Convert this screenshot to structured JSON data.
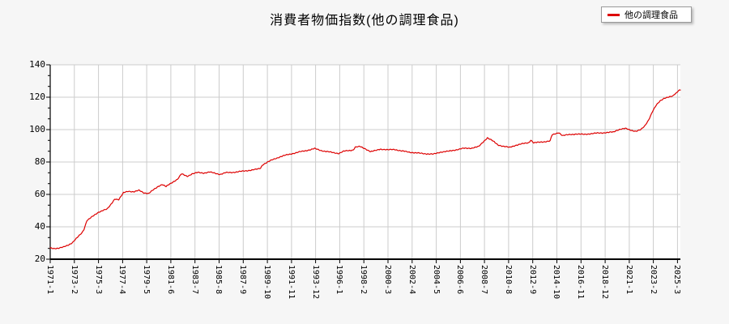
{
  "title": "消費者物価指数(他の調理食品)",
  "legend": {
    "label": "他の調理食品"
  },
  "colors": {
    "line": "#dd0000",
    "grid": "#cccccc",
    "axis": "#000000",
    "plot_bg": "#ffffff",
    "page_bg": "#f6f6f6",
    "text": "#000000",
    "legend_border": "#9a9a9a"
  },
  "chart_data": {
    "type": "line",
    "title": "消費者物価指数(他の調理食品)",
    "grid": true,
    "legend_position": "top-right",
    "x_start": "1971-1",
    "x_end": "2025-6",
    "x_tick_interval_months": 25,
    "x_tick_labels": [
      "1971-1",
      "1973-2",
      "1975-3",
      "1977-4",
      "1979-5",
      "1981-6",
      "1983-7",
      "1985-8",
      "1987-9",
      "1989-10",
      "1991-11",
      "1993-12",
      "1996-1",
      "1998-2",
      "2000-3",
      "2002-4",
      "2004-5",
      "2006-6",
      "2008-7",
      "2010-8",
      "2012-9",
      "2014-10",
      "2016-11",
      "2018-12",
      "2021-1",
      "2023-2",
      "2025-3"
    ],
    "ylim": [
      20,
      140
    ],
    "y_ticks": [
      20,
      40,
      60,
      80,
      100,
      120,
      140
    ],
    "y_minor_divisions": 3,
    "wiggle_amplitude": 0.22,
    "series": [
      {
        "name": "他の調理食品",
        "color": "#dd0000",
        "keypoints": [
          [
            "1971-1",
            26.8
          ],
          [
            "1971-5",
            26.6
          ],
          [
            "1971-10",
            26.9
          ],
          [
            "1972-3",
            27.5
          ],
          [
            "1972-8",
            28.8
          ],
          [
            "1972-12",
            30.3
          ],
          [
            "1973-3",
            32.2
          ],
          [
            "1973-7",
            34.5
          ],
          [
            "1973-10",
            36.3
          ],
          [
            "1973-12",
            38.5
          ],
          [
            "1974-3",
            44.0
          ],
          [
            "1974-8",
            46.0
          ],
          [
            "1974-12",
            47.6
          ],
          [
            "1975-3",
            49.0
          ],
          [
            "1975-8",
            50.3
          ],
          [
            "1975-12",
            50.9
          ],
          [
            "1976-3",
            53.0
          ],
          [
            "1976-8",
            57.3
          ],
          [
            "1976-12",
            56.8
          ],
          [
            "1977-5",
            61.0
          ],
          [
            "1977-10",
            62.0
          ],
          [
            "1978-4",
            61.6
          ],
          [
            "1978-9",
            62.5
          ],
          [
            "1979-2",
            61.0
          ],
          [
            "1979-7",
            60.6
          ],
          [
            "1979-12",
            62.8
          ],
          [
            "1980-5",
            65.0
          ],
          [
            "1980-9",
            66.2
          ],
          [
            "1981-1",
            64.8
          ],
          [
            "1981-7",
            67.2
          ],
          [
            "1982-1",
            69.5
          ],
          [
            "1982-5",
            72.6
          ],
          [
            "1982-11",
            71.2
          ],
          [
            "1983-4",
            72.7
          ],
          [
            "1983-10",
            73.5
          ],
          [
            "1984-4",
            73.2
          ],
          [
            "1984-10",
            73.8
          ],
          [
            "1985-4",
            73.0
          ],
          [
            "1985-9",
            72.4
          ],
          [
            "1986-3",
            73.4
          ],
          [
            "1986-10",
            73.6
          ],
          [
            "1987-4",
            74.0
          ],
          [
            "1987-10",
            74.4
          ],
          [
            "1988-5",
            75.0
          ],
          [
            "1988-12",
            75.6
          ],
          [
            "1989-3",
            76.2
          ],
          [
            "1989-5",
            78.3
          ],
          [
            "1989-11",
            80.2
          ],
          [
            "1990-5",
            81.8
          ],
          [
            "1990-11",
            83.2
          ],
          [
            "1991-5",
            84.2
          ],
          [
            "1991-12",
            85.2
          ],
          [
            "1992-7",
            86.2
          ],
          [
            "1993-2",
            87.0
          ],
          [
            "1993-11",
            88.3
          ],
          [
            "1994-5",
            87.2
          ],
          [
            "1994-11",
            86.5
          ],
          [
            "1995-6",
            85.8
          ],
          [
            "1995-12",
            85.3
          ],
          [
            "1996-5",
            86.6
          ],
          [
            "1996-11",
            87.1
          ],
          [
            "1997-3",
            87.5
          ],
          [
            "1997-5",
            89.2
          ],
          [
            "1997-10",
            89.5
          ],
          [
            "1998-4",
            88.0
          ],
          [
            "1998-9",
            86.4
          ],
          [
            "1999-2",
            87.0
          ],
          [
            "1999-7",
            88.0
          ],
          [
            "2000-3",
            87.5
          ],
          [
            "2000-10",
            87.8
          ],
          [
            "2001-5",
            86.8
          ],
          [
            "2001-12",
            86.2
          ],
          [
            "2002-8",
            85.6
          ],
          [
            "2003-4",
            85.2
          ],
          [
            "2004-2",
            84.8
          ],
          [
            "2004-10",
            86.2
          ],
          [
            "2005-6",
            86.6
          ],
          [
            "2006-2",
            87.6
          ],
          [
            "2006-9",
            88.4
          ],
          [
            "2007-6",
            88.6
          ],
          [
            "2008-1",
            89.5
          ],
          [
            "2008-5",
            92.0
          ],
          [
            "2008-10",
            95.0
          ],
          [
            "2009-3",
            93.2
          ],
          [
            "2009-9",
            90.6
          ],
          [
            "2010-3",
            89.6
          ],
          [
            "2010-9",
            89.0
          ],
          [
            "2011-3",
            90.3
          ],
          [
            "2011-10",
            91.2
          ],
          [
            "2012-5",
            92.0
          ],
          [
            "2012-7",
            93.6
          ],
          [
            "2012-10",
            91.8
          ],
          [
            "2013-4",
            92.2
          ],
          [
            "2013-11",
            92.7
          ],
          [
            "2014-3",
            93.0
          ],
          [
            "2014-5",
            96.6
          ],
          [
            "2014-12",
            98.2
          ],
          [
            "2015-4",
            96.3
          ],
          [
            "2015-11",
            96.9
          ],
          [
            "2016-6",
            97.3
          ],
          [
            "2017-2",
            97.0
          ],
          [
            "2017-9",
            97.5
          ],
          [
            "2018-4",
            97.8
          ],
          [
            "2019-2",
            98.2
          ],
          [
            "2019-9",
            98.5
          ],
          [
            "2019-11",
            99.3
          ],
          [
            "2020-3",
            100.2
          ],
          [
            "2020-9",
            100.7
          ],
          [
            "2021-2",
            99.7
          ],
          [
            "2021-8",
            99.0
          ],
          [
            "2022-1",
            99.9
          ],
          [
            "2022-5",
            102.2
          ],
          [
            "2022-9",
            106.0
          ],
          [
            "2023-1",
            111.0
          ],
          [
            "2023-5",
            115.0
          ],
          [
            "2023-9",
            117.8
          ],
          [
            "2024-1",
            119.4
          ],
          [
            "2024-6",
            120.0
          ],
          [
            "2024-10",
            120.6
          ],
          [
            "2024-12",
            121.9
          ],
          [
            "2025-2",
            122.8
          ],
          [
            "2025-4",
            124.2
          ],
          [
            "2025-6",
            124.6
          ]
        ]
      }
    ]
  }
}
